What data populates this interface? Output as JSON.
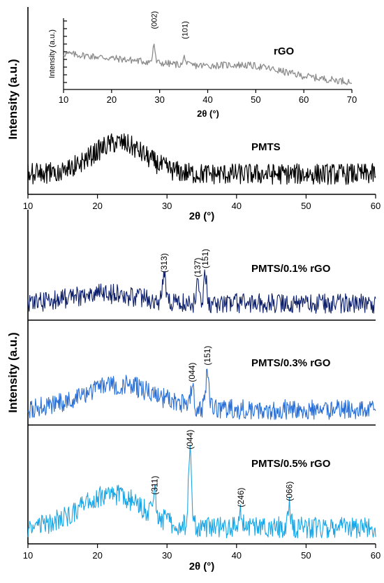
{
  "chart_data": [
    {
      "id": "rgo-inset",
      "type": "line",
      "label": "rGO",
      "ylabel": "Intensity (a.u.)",
      "xlabel": "2θ (°)",
      "xlim": [
        10,
        70
      ],
      "xticks": [
        "10",
        "20",
        "30",
        "40",
        "50",
        "60",
        "70"
      ],
      "color": "#8c8c8c",
      "shape": {
        "base_start": 0.55,
        "base_end": 0.1,
        "hump_center": 49,
        "hump_width": 6,
        "hump_height": 0.1,
        "noise": 0.07
      },
      "peaks": [
        {
          "x": 28.8,
          "height": 0.3,
          "label": "(002)"
        },
        {
          "x": 35.2,
          "height": 0.14,
          "label": "(101)"
        }
      ]
    },
    {
      "id": "pmts",
      "type": "line",
      "label": "PMTS",
      "ylabel": "Intensity (a.u.)",
      "xlabel": "2θ (°)",
      "xlim": [
        10,
        60
      ],
      "xticks": [
        "10",
        "20",
        "30",
        "40",
        "50",
        "60"
      ],
      "color": "#000000",
      "shape": {
        "base": 0.22,
        "hump_center": 23,
        "hump_width": 3.8,
        "hump_height": 0.38,
        "noise": 0.16
      },
      "peaks": []
    },
    {
      "id": "pmts-01",
      "type": "line",
      "label": "PMTS/0.1% rGO",
      "color": "#0d1f6b",
      "xlim": [
        10,
        60
      ],
      "shape": {
        "base": 0.2,
        "hump_center": 21,
        "hump_width": 5,
        "hump_height": 0.13,
        "noise": 0.17
      },
      "peaks": [
        {
          "x": 29.6,
          "height": 0.34,
          "label": "(313)"
        },
        {
          "x": 34.4,
          "height": 0.28,
          "label": "(137)"
        },
        {
          "x": 35.5,
          "height": 0.4,
          "label": "(151)"
        }
      ]
    },
    {
      "id": "pmts-03",
      "type": "line",
      "label": "PMTS/0.3% rGO",
      "color": "#2a6fd6",
      "xlim": [
        10,
        60
      ],
      "shape": {
        "base": 0.16,
        "hump_center": 23,
        "hump_width": 5.2,
        "hump_height": 0.3,
        "noise": 0.15
      },
      "peaks": [
        {
          "x": 33.6,
          "height": 0.26,
          "label": "(044)"
        },
        {
          "x": 35.8,
          "height": 0.46,
          "label": "(151)"
        }
      ]
    },
    {
      "id": "pmts-05",
      "type": "line",
      "label": "PMTS/0.5% rGO",
      "ylabel": "Intensity (a.u.)",
      "xlabel": "2θ (°)",
      "xlim": [
        10,
        60
      ],
      "xticks": [
        "10",
        "20",
        "30",
        "40",
        "50",
        "60"
      ],
      "color": "#19a6e6",
      "shape": {
        "base": 0.14,
        "hump_center": 22,
        "hump_width": 4.4,
        "hump_height": 0.32,
        "noise": 0.13
      },
      "peaks": [
        {
          "x": 28.2,
          "height": 0.26,
          "label": "(311)"
        },
        {
          "x": 33.3,
          "height": 0.7,
          "label": "(044)"
        },
        {
          "x": 40.6,
          "height": 0.14,
          "label": "(246)"
        },
        {
          "x": 47.6,
          "height": 0.2,
          "label": "(066)"
        }
      ]
    }
  ],
  "labels": {
    "top_ylabel": "Intensity (a.u.)",
    "bottom_ylabel": "Intensity (a.u.)",
    "inset_ylabel": "Intensity (a.u.)",
    "top_xlabel": "2θ (°)",
    "bottom_xlabel": "2θ (°)",
    "inset_xlabel": "2θ (°)"
  }
}
